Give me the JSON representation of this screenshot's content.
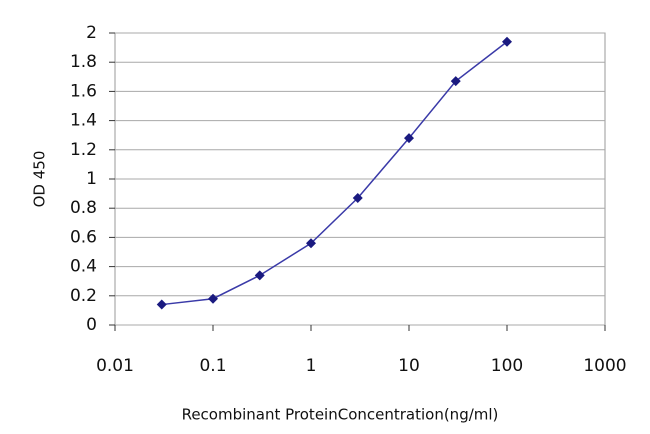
{
  "chart_data": {
    "type": "line",
    "x_label": "Recombinant ProteinConcentration(ng/ml)",
    "y_label": "OD 450",
    "x": [
      0.03,
      0.1,
      0.3,
      1,
      3,
      10,
      30,
      100
    ],
    "values": [
      0.14,
      0.18,
      0.34,
      0.56,
      0.87,
      1.28,
      1.67,
      1.94
    ],
    "color": "#3a3aa8",
    "marker_color": "#1a1a80",
    "xscale": "log",
    "xlim": [
      0.01,
      1000
    ],
    "xticks": [
      0.01,
      0.1,
      1,
      10,
      100,
      1000
    ],
    "ylim": [
      0,
      2
    ],
    "yticks": [
      0,
      0.2,
      0.4,
      0.6,
      0.8,
      1,
      1.2,
      1.4,
      1.6,
      1.8,
      2
    ],
    "grid": true
  }
}
